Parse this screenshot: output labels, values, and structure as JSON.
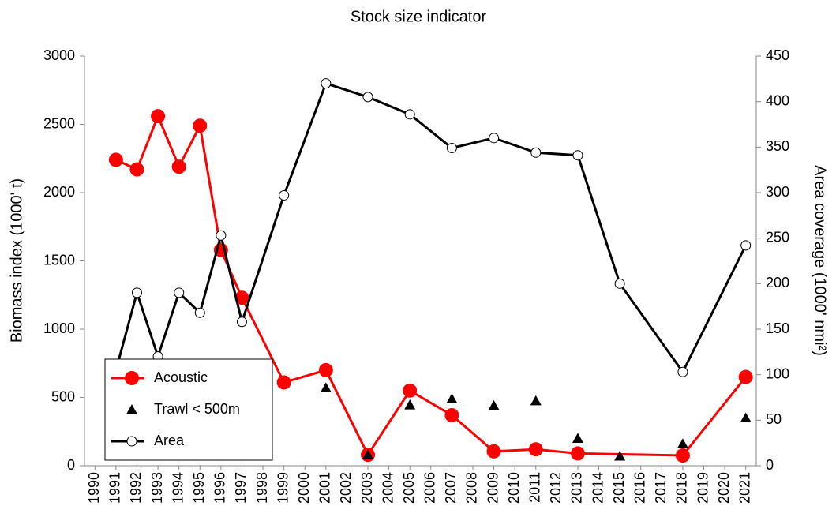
{
  "chart_data": {
    "type": "line",
    "title": "Stock size indicator",
    "y_label": "Biomass index (1000' t)",
    "y2_label": "Area coverage (1000' nmi²)",
    "xlim": [
      1989.5,
      2021.5
    ],
    "xticks": [
      1990,
      1991,
      1992,
      1993,
      1994,
      1995,
      1996,
      1997,
      1998,
      1999,
      2000,
      2001,
      2002,
      2003,
      2004,
      2005,
      2006,
      2007,
      2008,
      2009,
      2010,
      2011,
      2012,
      2013,
      2014,
      2015,
      2016,
      2017,
      2018,
      2019,
      2020,
      2021
    ],
    "ylim": [
      0,
      3000
    ],
    "yticks": [
      0,
      500,
      1000,
      1500,
      2000,
      2500,
      3000
    ],
    "y2lim": [
      0,
      450
    ],
    "y2ticks": [
      0,
      50,
      100,
      150,
      200,
      250,
      300,
      350,
      400,
      450
    ],
    "legend": "lower left",
    "series": [
      {
        "name": "Acoustic",
        "color": "#ff0000",
        "style": "line-circle",
        "x": [
          1991,
          1992,
          1993,
          1994,
          1995,
          1996,
          1997,
          1999,
          2001,
          2003,
          2005,
          2007,
          2009,
          2011,
          2013,
          2018,
          2021
        ],
        "values": [
          2240,
          2170,
          2560,
          2190,
          2490,
          1580,
          1230,
          610,
          700,
          80,
          550,
          370,
          105,
          120,
          90,
          75,
          650
        ]
      },
      {
        "name": "Trawl < 500m",
        "color": "#000000",
        "style": "triangle",
        "x": [
          2001,
          2003,
          2005,
          2007,
          2009,
          2011,
          2013,
          2015,
          2018,
          2021
        ],
        "values": [
          570,
          80,
          445,
          490,
          440,
          475,
          200,
          70,
          160,
          350
        ]
      },
      {
        "name": "Area",
        "color": "#000000",
        "style": "line-open-circle",
        "axis": "y2",
        "x": [
          1991,
          1992,
          1993,
          1994,
          1995,
          1996,
          1997,
          1999,
          2001,
          2003,
          2005,
          2007,
          2009,
          2011,
          2013,
          2015,
          2018,
          2021
        ],
        "values": [
          105,
          190,
          120,
          190,
          168,
          253,
          158,
          297,
          420,
          405,
          386,
          349,
          360,
          344,
          341,
          200,
          103,
          242
        ]
      }
    ]
  }
}
